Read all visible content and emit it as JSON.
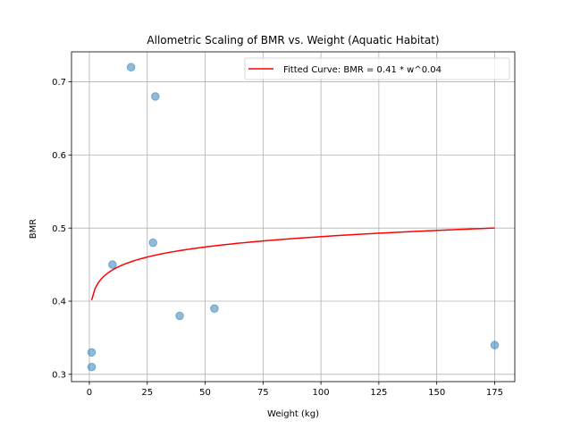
{
  "chart_data": {
    "type": "scatter",
    "title": "Allometric Scaling of BMR vs. Weight (Aquatic Habitat)",
    "xlabel": "Weight (kg)",
    "ylabel": "BMR",
    "xlim": [
      -7.7,
      183.7
    ],
    "ylim": [
      0.29,
      0.741
    ],
    "xticks": [
      0,
      25,
      50,
      75,
      100,
      125,
      150,
      175
    ],
    "yticks": [
      0.3,
      0.4,
      0.5,
      0.6,
      0.7
    ],
    "grid": true,
    "legend_position": "top-right",
    "scatter": {
      "color": "#1f77b4",
      "points": [
        {
          "x": 1,
          "y": 0.33
        },
        {
          "x": 1,
          "y": 0.31
        },
        {
          "x": 10,
          "y": 0.45
        },
        {
          "x": 18,
          "y": 0.72
        },
        {
          "x": 27.5,
          "y": 0.48
        },
        {
          "x": 28.5,
          "y": 0.68
        },
        {
          "x": 39,
          "y": 0.38
        },
        {
          "x": 54,
          "y": 0.39
        },
        {
          "x": 175,
          "y": 0.34
        }
      ]
    },
    "fitted_curve": {
      "label": "Fitted Curve: BMR = 0.41 * w^0.04",
      "color": "#ff0000",
      "a": 0.4015,
      "b": 0.0425,
      "x_range": [
        1,
        175
      ]
    }
  }
}
